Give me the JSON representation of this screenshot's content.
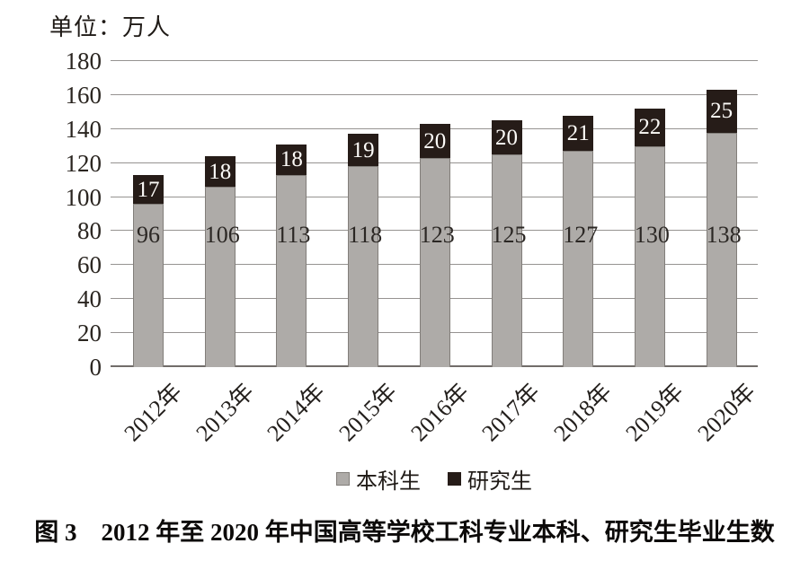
{
  "figure": {
    "unit_label": "单位：万人",
    "caption": "图 3　2012 年至 2020 年中国高等学校工科专业本科、研究生毕业生数"
  },
  "legend": {
    "items": [
      {
        "label": "本科生",
        "color": "#aeaba8",
        "border": "#827e7a"
      },
      {
        "label": "研究生",
        "color": "#261c18",
        "border": "#261c18"
      }
    ]
  },
  "chart_data": {
    "type": "bar",
    "stacked": true,
    "title": "图 3　2012 年至 2020 年中国高等学校工科专业本科、研究生毕业生数",
    "unit": "万人",
    "categories": [
      "2012年",
      "2013年",
      "2014年",
      "2015年",
      "2016年",
      "2017年",
      "2018年",
      "2019年",
      "2020年"
    ],
    "series": [
      {
        "name": "本科生",
        "color": "#aeaba8",
        "values": [
          96,
          106,
          113,
          118,
          123,
          125,
          127,
          130,
          138
        ]
      },
      {
        "name": "研究生",
        "color": "#261c18",
        "values": [
          17,
          18,
          18,
          19,
          20,
          20,
          21,
          22,
          25
        ]
      }
    ],
    "totals": [
      113,
      124,
      131,
      137,
      143,
      145,
      148,
      152,
      163
    ],
    "ylim": [
      0,
      180
    ],
    "yticks": [
      0,
      20,
      40,
      60,
      80,
      100,
      120,
      140,
      160,
      180
    ],
    "grid": true,
    "legend_position": "bottom",
    "bar_label_color_gray_segment": "#2b2724",
    "bar_label_color_black_segment": "#fdfbf8"
  }
}
